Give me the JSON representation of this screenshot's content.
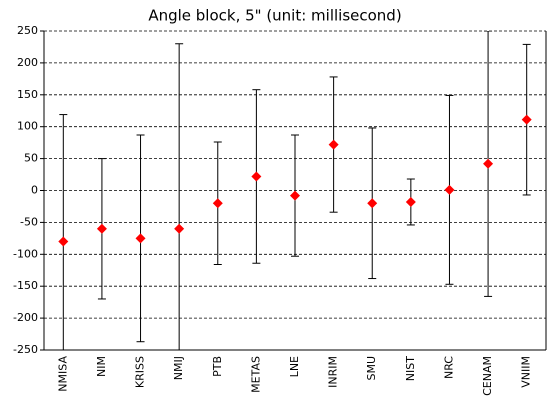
{
  "chart_data": {
    "type": "errorbar",
    "title": "Angle block, 5\" (unit: millisecond)",
    "categories": [
      "NMISA",
      "NIM",
      "KRISS",
      "NMIJ",
      "PTB",
      "METAS",
      "LNE",
      "INRIM",
      "SMU",
      "NIST",
      "NRC",
      "CENAM",
      "VNIIM"
    ],
    "values": [
      -80,
      -60,
      -75,
      -60,
      -20,
      22,
      -8,
      72,
      -20,
      -18,
      1,
      42,
      111
    ],
    "errors": [
      199,
      110,
      162,
      290,
      96,
      136,
      95,
      106,
      118,
      36,
      148,
      208,
      118
    ],
    "color": "#ff0000",
    "ylim": [
      -250,
      250
    ],
    "yticks": [
      -250,
      -200,
      -150,
      -100,
      -50,
      0,
      50,
      100,
      150,
      200,
      250
    ],
    "grid": true
  }
}
